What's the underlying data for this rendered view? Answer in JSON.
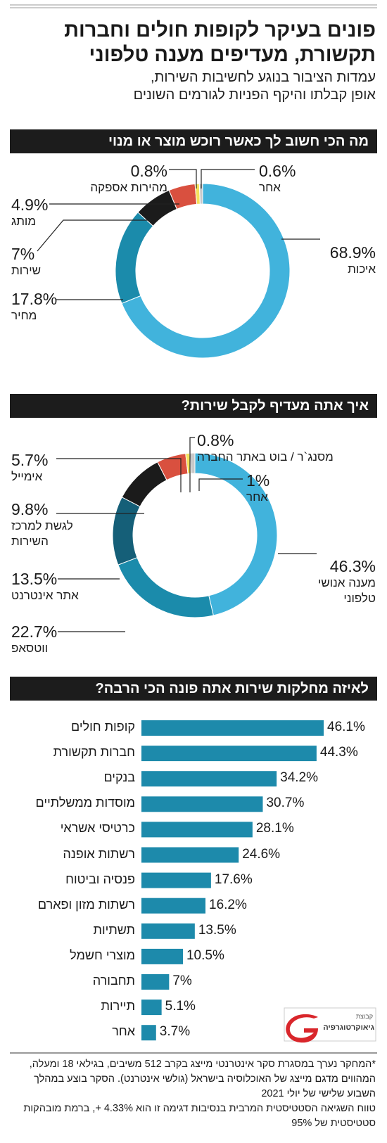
{
  "header": {
    "title": "פונים בעיקר לקופות חולים וחברות\nתקשורת, מעדיפים מענה טלפוני",
    "subtitle": "עמדות הציבור בנוגע לחשיבות השירות,\nאופן קבלתו והיקף הפניות לגורמים השונים"
  },
  "chart_data": [
    {
      "type": "pie",
      "title": "מה הכי חשוב לך כאשר רוכש מוצר או מנוי",
      "categories": [
        "איכות",
        "מחיר",
        "שירות",
        "מותג",
        "מהירות אספקה",
        "אחר"
      ],
      "values": [
        68.9,
        17.8,
        7,
        4.9,
        0.8,
        0.6
      ],
      "value_labels": [
        "68.9%",
        "17.8%",
        "7%",
        "4.9%",
        "0.8%",
        "0.6%"
      ],
      "colors": [
        "#41b3dc",
        "#1b8bab",
        "#1b1b1b",
        "#d9503f",
        "#f4e15c",
        "#c9c9c9"
      ]
    },
    {
      "type": "pie",
      "title": "איך אתה מעדיף לקבל שירות?",
      "categories": [
        "מענה אנושי\nטלפוני",
        "ווטסאפ",
        "אתר אינטרנט",
        "לגשת למרכז\nהשירות",
        "אימייל",
        "מסנג`ר / בוט באתר החברה",
        "אחר"
      ],
      "values": [
        46.3,
        22.7,
        13.5,
        9.8,
        5.7,
        0.8,
        1
      ],
      "value_labels": [
        "46.3%",
        "22.7%",
        "13.5%",
        "9.8%",
        "5.7%",
        "0.8%",
        "1%"
      ],
      "colors": [
        "#41b3dc",
        "#1b8bab",
        "#155f78",
        "#1b1b1b",
        "#d9503f",
        "#f4e15c",
        "#c9c9c9"
      ]
    },
    {
      "type": "bar",
      "title": "לאיזה מחלקות שירות אתה פונה הכי הרבה?",
      "categories": [
        "קופות חולים",
        "חברות תקשורת",
        "בנקים",
        "מוסדות ממשלתיים",
        "כרטיסי אשראי",
        "רשתות אופנה",
        "פנסיה וביטוח",
        "רשתות מזון ופארם",
        "תשתיות",
        "מוצרי חשמל",
        "תחבורה",
        "תיירות",
        "אחר"
      ],
      "values": [
        46.1,
        44.3,
        34.2,
        30.7,
        28.1,
        24.6,
        17.6,
        16.2,
        13.5,
        10.5,
        7,
        5.1,
        3.7
      ],
      "value_labels": [
        "46.1%",
        "44.3%",
        "34.2%",
        "30.7%",
        "28.1%",
        "24.6%",
        "17.6%",
        "16.2%",
        "13.5%",
        "10.5%",
        "7%",
        "5.1%",
        "3.7%"
      ],
      "color": "#1d8aab"
    }
  ],
  "footnote": [
    "*המחקר נערך במסגרת סקר אינטרנטי מייצג בקרב 512 משיבים, בגילאי 18 ומעלה, המהווים מדגם מייצג של האוכלוסיה בישראל (גולשי אינטרנט). הסקר בוצע במהלך השבוע שלישי של יולי 2021",
    "טווח השגיאה הסטטיסטית המרבית בנסיבות דגימה זו הוא 4.33% +, ברמת מובהקות סטטיסטית של 95%"
  ],
  "logo": {
    "group": "קבוצת",
    "name": "גיאוקרטוגרפיה"
  }
}
